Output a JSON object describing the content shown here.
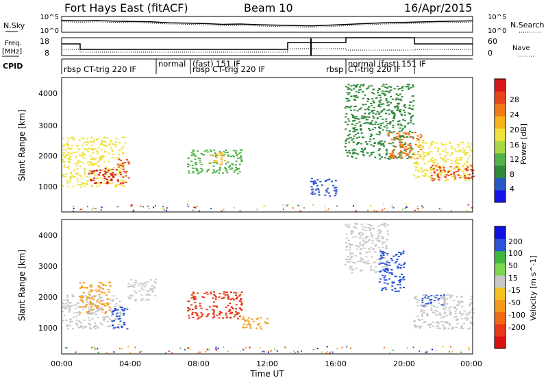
{
  "header": {
    "station": "Fort Hays East (fitACF)",
    "beam": "Beam 10",
    "date": "16/Apr/2015"
  },
  "panels": {
    "noise": {
      "left_label": "N.Sky",
      "right_label": "N.Search",
      "ticks_left": [
        "10^5",
        "10^0"
      ],
      "ticks_right": [
        "10^5",
        "10^0"
      ]
    },
    "freq": {
      "left_label_1": "Freq.",
      "left_label_2": "[MHz]",
      "ticks_left": [
        "18",
        "8"
      ],
      "right_label": "Nave",
      "ticks_right": [
        "60",
        "0"
      ]
    },
    "cpid": {
      "label": "CPID",
      "segments": [
        {
          "text": "rbsp CT-trig 220 IF",
          "start": 0.0,
          "end": 5.5
        },
        {
          "text": "normal",
          "start": 5.5,
          "end": 7.5
        },
        {
          "text": "(fast) 151 IF",
          "start": 7.5,
          "end": 10.5
        },
        {
          "text": "rbsp CT-trig 220 IF",
          "start": 7.5,
          "end": 16.5
        },
        {
          "text": "rbsp",
          "start": 14.5,
          "end": 16.5
        },
        {
          "text": "CT-trig 220 IF",
          "start": 16.5,
          "end": 20.5
        },
        {
          "text": "normal (fast) 151 IF",
          "start": 16.5,
          "end": 24.0
        }
      ]
    }
  },
  "axes": {
    "x_title": "Time UT",
    "x_ticks": [
      "00:00",
      "04:00",
      "08:00",
      "12:00",
      "16:00",
      "20:00",
      "00:00"
    ],
    "y_title_top": "Slant Range [km]",
    "y_title_bottom": "Slant Range [km]",
    "y_ticks": [
      "4000",
      "3000",
      "2000",
      "1000"
    ]
  },
  "colorbars": {
    "power": {
      "title": "Power [dB]",
      "labels": [
        "28",
        "24",
        "20",
        "16",
        "12",
        "8",
        "4"
      ],
      "colors": [
        "#1414e6",
        "#2b58c8",
        "#2f8a3a",
        "#52b34a",
        "#a8d84a",
        "#f0e23c",
        "#f8b21a",
        "#f27a18",
        "#e8441a",
        "#d81818"
      ]
    },
    "velocity": {
      "title": "Velocity [m s^-1]",
      "labels": [
        "200",
        "100",
        "50",
        "15",
        "-15",
        "-50",
        "-100",
        "-200"
      ],
      "colors": [
        "#1010e0",
        "#2a55d8",
        "#3cb83c",
        "#7ed64e",
        "#c8c8c8",
        "#f5c020",
        "#f59a18",
        "#f06a18",
        "#e83818",
        "#d81010"
      ]
    }
  },
  "chart_data": [
    {
      "type": "heatmap",
      "title": "Power [dB]",
      "xlabel": "Time UT",
      "ylabel": "Slant Range [km]",
      "xlim": [
        0,
        24
      ],
      "ylim": [
        180,
        4500
      ],
      "x_unit": "hours UT",
      "scale": [
        4,
        28
      ],
      "blobs": [
        {
          "t0": 0.0,
          "t1": 3.7,
          "r0": 1000,
          "r1": 2600,
          "value": 16
        },
        {
          "t0": 1.5,
          "t1": 3.2,
          "r0": 1100,
          "r1": 1600,
          "value": 26
        },
        {
          "t0": 3.2,
          "t1": 3.9,
          "r0": 1100,
          "r1": 1900,
          "value": 24
        },
        {
          "t0": 7.3,
          "t1": 10.5,
          "r0": 1400,
          "r1": 2200,
          "value": 12
        },
        {
          "t0": 8.5,
          "t1": 9.5,
          "r0": 1700,
          "r1": 2100,
          "value": 20
        },
        {
          "t0": 14.5,
          "t1": 16.0,
          "r0": 700,
          "r1": 1300,
          "value": 8
        },
        {
          "t0": 16.5,
          "t1": 20.5,
          "r0": 1900,
          "r1": 4300,
          "value": 10
        },
        {
          "t0": 19.0,
          "t1": 21.0,
          "r0": 1900,
          "r1": 2800,
          "value": 22
        },
        {
          "t0": 20.5,
          "t1": 24.0,
          "r0": 1200,
          "r1": 2500,
          "value": 16
        },
        {
          "t0": 21.5,
          "t1": 24.0,
          "r0": 1200,
          "r1": 1700,
          "value": 24
        }
      ]
    },
    {
      "type": "heatmap",
      "title": "Velocity [m s^-1]",
      "xlabel": "Time UT",
      "ylabel": "Slant Range [km]",
      "xlim": [
        0,
        24
      ],
      "ylim": [
        180,
        4500
      ],
      "x_unit": "hours UT",
      "scale": [
        -200,
        200
      ],
      "blobs": [
        {
          "t0": 0.0,
          "t1": 3.5,
          "r0": 1000,
          "r1": 2100,
          "value": 0
        },
        {
          "t0": 1.0,
          "t1": 2.8,
          "r0": 1500,
          "r1": 2500,
          "value": -75
        },
        {
          "t0": 2.8,
          "t1": 3.8,
          "r0": 1000,
          "r1": 1700,
          "value": 150
        },
        {
          "t0": 3.8,
          "t1": 5.5,
          "r0": 1900,
          "r1": 2600,
          "value": 0
        },
        {
          "t0": 7.3,
          "t1": 10.5,
          "r0": 1300,
          "r1": 2200,
          "value": -150
        },
        {
          "t0": 10.5,
          "t1": 12.0,
          "r0": 1000,
          "r1": 1400,
          "value": -75
        },
        {
          "t0": 16.5,
          "t1": 19.0,
          "r0": 2800,
          "r1": 4400,
          "value": 0
        },
        {
          "t0": 18.5,
          "t1": 20.0,
          "r0": 2200,
          "r1": 3500,
          "value": 150
        },
        {
          "t0": 21.0,
          "t1": 22.3,
          "r0": 1700,
          "r1": 2100,
          "value": 150
        },
        {
          "t0": 20.5,
          "t1": 24.0,
          "r0": 1000,
          "r1": 2100,
          "value": 0
        }
      ]
    },
    {
      "type": "line",
      "title": "N.Sky / N.Search",
      "series": [
        {
          "values": [
            0.75,
            0.72,
            0.74,
            0.7,
            0.68,
            0.66,
            0.6,
            0.58,
            0.55,
            0.5,
            0.52,
            0.48,
            0.45,
            0.42,
            0.4,
            0.45,
            0.5,
            0.55,
            0.6,
            0.62,
            0.65,
            0.68,
            0.7,
            0.72
          ]
        }
      ],
      "x_unit": "hours UT"
    }
  ]
}
